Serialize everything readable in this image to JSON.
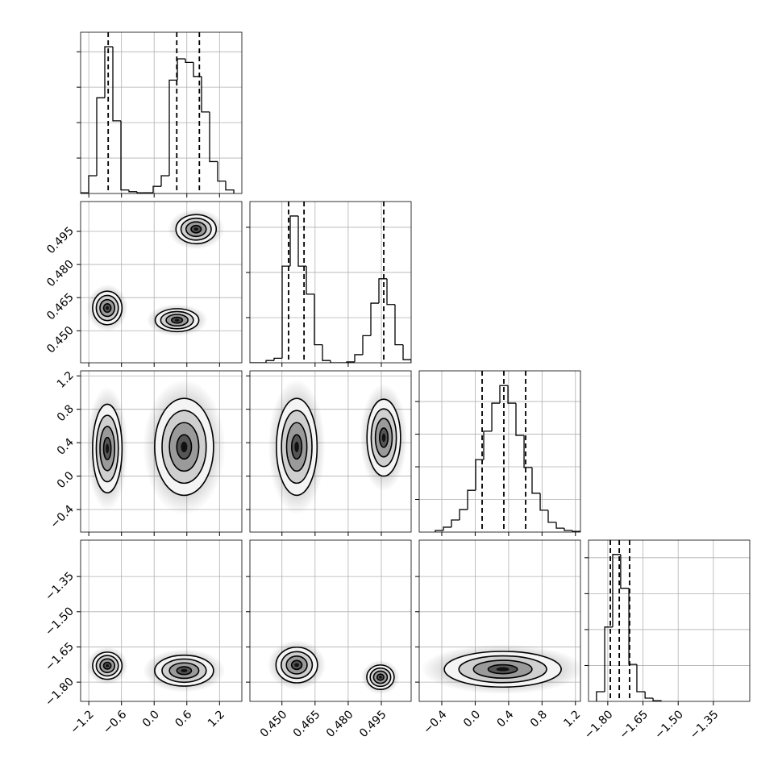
{
  "chart_data": {
    "type": "corner",
    "grid": true,
    "color": "#000000",
    "params": [
      {
        "lim": [
          -1.35,
          1.61
        ],
        "ticks": [
          {
            "value": -1.2,
            "label": "−1.2"
          },
          {
            "value": -0.6,
            "label": "−0.6"
          },
          {
            "value": 0,
            "label": "0.0"
          },
          0.6,
          1.2
        ]
      },
      {
        "lim": [
          0.4355,
          0.5085
        ],
        "ticks": [
          {
            "value": 0.45,
            "label": "0.450"
          },
          0.465,
          {
            "value": 0.48,
            "label": "0.480"
          },
          0.495
        ]
      },
      {
        "lim": [
          -0.67,
          1.26
        ],
        "ticks": [
          {
            "value": -0.4,
            "label": "−0.4"
          },
          {
            "value": 0,
            "label": "0.0"
          },
          0.4,
          0.8,
          1.2
        ]
      },
      {
        "lim": [
          -1.882,
          -1.195
        ],
        "ticks": [
          {
            "value": -1.8,
            "label": "−1.80"
          },
          {
            "value": -1.65,
            "label": "−1.65"
          },
          {
            "value": -1.5,
            "label": "−1.50"
          },
          {
            "value": -1.35,
            "label": "−1.35"
          }
        ]
      }
    ],
    "histograms": [
      {
        "bins": [
          -1.35,
          -1.202,
          -1.054,
          -0.906,
          -0.758,
          -0.61,
          -0.462,
          -0.314,
          -0.166,
          -0.018,
          0.13,
          0.278,
          0.426,
          0.574,
          0.722,
          0.87,
          1.018,
          1.166,
          1.314,
          1.462
        ],
        "counts": [
          0.02,
          0.5,
          2.7,
          4.14,
          2.05,
          0.1,
          0.05,
          0.02,
          0.02,
          0.2,
          0.5,
          3.2,
          3.8,
          3.7,
          3.3,
          2.3,
          0.9,
          0.35,
          0.1
        ],
        "ylim": [
          0,
          4.55
        ],
        "yticks": [
          1,
          2,
          3,
          4
        ],
        "quantiles": [
          -0.844,
          0.415,
          0.83
        ]
      },
      {
        "bins": [
          0.4355,
          0.43915,
          0.4428,
          0.44645,
          0.4501,
          0.45375,
          0.4574,
          0.46105,
          0.4647,
          0.46835,
          0.472,
          0.47565,
          0.4793,
          0.48295,
          0.4866,
          0.49025,
          0.4939,
          0.49755,
          0.5012,
          0.50485,
          0.5085
        ],
        "counts": [
          0,
          0,
          0.05,
          0.1,
          2.14,
          3.25,
          2.14,
          1.52,
          0.4,
          0.05,
          0,
          0,
          0.02,
          0.18,
          0.6,
          1.32,
          1.86,
          1.29,
          0.4,
          0.07
        ],
        "ylim": [
          0,
          3.57
        ],
        "yticks": [
          1,
          2,
          3
        ],
        "quantiles": [
          0.453,
          0.46,
          0.4961
        ]
      },
      {
        "bins": [
          -0.477,
          -0.38,
          -0.284,
          -0.187,
          -0.091,
          0.006,
          0.102,
          0.199,
          0.295,
          0.392,
          0.488,
          0.585,
          0.681,
          0.778,
          0.874,
          0.971,
          1.067,
          1.164,
          1.26
        ],
        "counts": [
          0.05,
          0.15,
          0.37,
          0.69,
          1.28,
          2.22,
          3.09,
          3.95,
          4.49,
          3.95,
          2.96,
          1.98,
          1.19,
          0.67,
          0.3,
          0.12,
          0.05,
          0.02
        ],
        "ylim": [
          0,
          4.94
        ],
        "yticks": [
          1,
          2,
          3,
          4
        ],
        "quantiles": [
          0.083,
          0.343,
          0.604
        ]
      },
      {
        "bins": [
          -1.848,
          -1.813,
          -1.779,
          -1.745,
          -1.71,
          -1.676,
          -1.641,
          -1.607,
          -1.573
        ],
        "counts": [
          0.27,
          2.07,
          4.09,
          3.15,
          1.03,
          0.27,
          0.09,
          0.02
        ],
        "ylim": [
          0,
          4.49
        ],
        "yticks": [
          1,
          2,
          3,
          4
        ],
        "quantiles": [
          -1.789,
          -1.751,
          -1.707
        ]
      }
    ],
    "panels": [
      {
        "x_param": 0,
        "y_param": 1,
        "clusters": [
          {
            "center": [
              -0.86,
              0.4603
            ],
            "spread": [
              0.135,
              0.0038
            ]
          },
          {
            "center": [
              0.42,
              0.4548
            ],
            "spread": [
              0.2,
              0.0026
            ]
          },
          {
            "center": [
              0.77,
              0.496
            ],
            "spread": [
              0.185,
              0.0033
            ]
          }
        ]
      },
      {
        "x_param": 0,
        "y_param": 2,
        "clusters": [
          {
            "center": [
              -0.86,
              0.33
            ],
            "spread": [
              0.135,
              0.265
            ]
          },
          {
            "center": [
              0.55,
              0.35
            ],
            "spread": [
              0.27,
              0.29
            ]
          }
        ]
      },
      {
        "x_param": 1,
        "y_param": 2,
        "clusters": [
          {
            "center": [
              0.4567,
              0.35
            ],
            "spread": [
              0.0046,
              0.29
            ]
          },
          {
            "center": [
              0.4961,
              0.46
            ],
            "spread": [
              0.0038,
              0.23
            ]
          }
        ]
      },
      {
        "x_param": 0,
        "y_param": 3,
        "clusters": [
          {
            "center": [
              -0.86,
              -1.73
            ],
            "spread": [
              0.135,
              0.029
            ]
          },
          {
            "center": [
              0.55,
              -1.751
            ],
            "spread": [
              0.27,
              0.033
            ]
          }
        ]
      },
      {
        "x_param": 1,
        "y_param": 3,
        "clusters": [
          {
            "center": [
              0.4567,
              -1.727
            ],
            "spread": [
              0.0047,
              0.038
            ]
          },
          {
            "center": [
              0.4946,
              -1.779
            ],
            "spread": [
              0.0031,
              0.026
            ]
          }
        ]
      },
      {
        "x_param": 2,
        "y_param": 3,
        "clusters": [
          {
            "center": [
              0.33,
              -1.745
            ],
            "spread": [
              0.35,
              0.038
            ]
          }
        ]
      }
    ]
  }
}
